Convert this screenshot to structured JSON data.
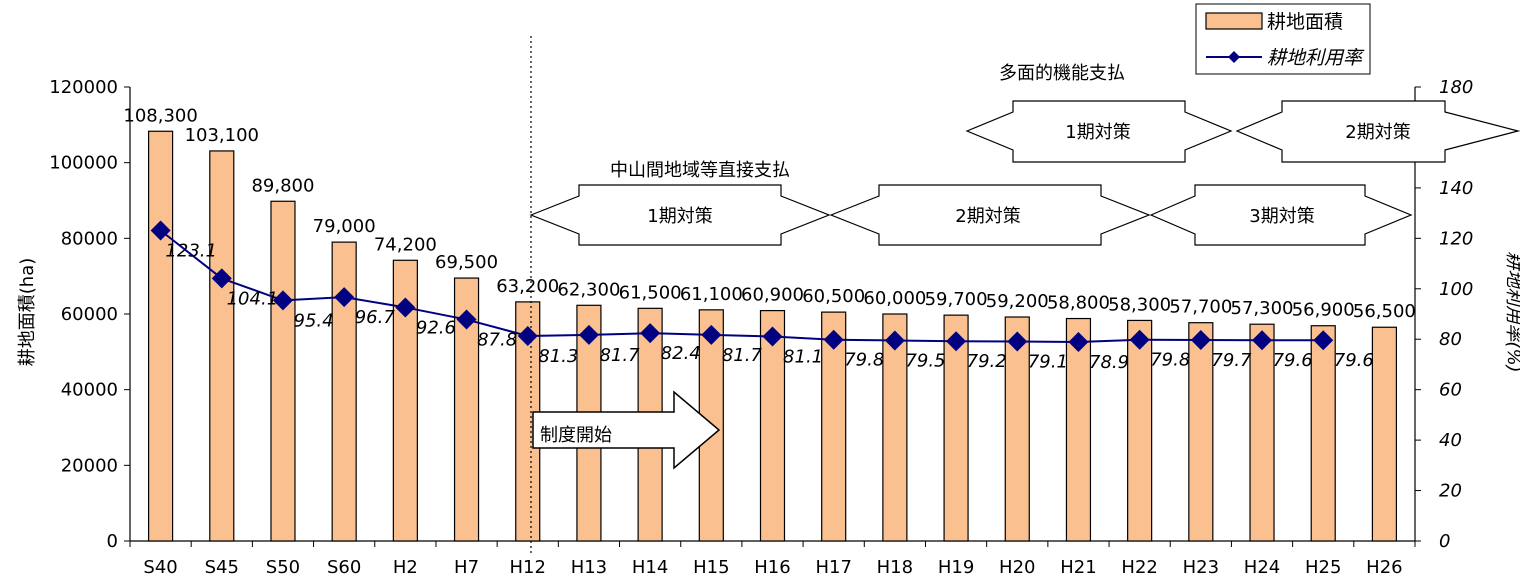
{
  "chart_data": {
    "type": "bar+line",
    "categories": [
      "S40",
      "S45",
      "S50",
      "S60",
      "H2",
      "H7",
      "H12",
      "H13",
      "H14",
      "H15",
      "H16",
      "H17",
      "H18",
      "H19",
      "H20",
      "H21",
      "H22",
      "H23",
      "H24",
      "H25",
      "H26"
    ],
    "series": [
      {
        "name": "耕地面積",
        "type": "bar",
        "axis": "left",
        "color": "#FAC090",
        "values": [
          108300,
          103100,
          89800,
          79000,
          74200,
          69500,
          63200,
          62300,
          61500,
          61100,
          60900,
          60500,
          60000,
          59700,
          59200,
          58800,
          58300,
          57700,
          57300,
          56900,
          56500
        ],
        "labels": [
          "108,300",
          "103,100",
          "89,800",
          "79,000",
          "74,200",
          "69,500",
          "63,200",
          "62,300",
          "61,500",
          "61,100",
          "60,900",
          "60,500",
          "60,000",
          "59,700",
          "59,200",
          "58,800",
          "58,300",
          "57,700",
          "57,300",
          "56,900",
          "56,500"
        ]
      },
      {
        "name": "耕地利用率",
        "type": "line",
        "axis": "right",
        "color": "#000080",
        "marker": "diamond",
        "values": [
          123.1,
          104.1,
          95.4,
          96.7,
          92.6,
          87.8,
          81.3,
          81.7,
          82.4,
          81.7,
          81.1,
          79.8,
          79.5,
          79.2,
          79.1,
          78.9,
          79.8,
          79.7,
          79.6,
          79.6,
          null
        ],
        "labels": [
          "123.1",
          "104.1",
          "95.4",
          "96.7",
          "92.6",
          "87.8",
          "81.3",
          "81.7",
          "82.4",
          "81.7",
          "81.1",
          "79.8",
          "79.5",
          "79.2",
          "79.1",
          "78.9",
          "79.8",
          "79.7",
          "79.6",
          "79.6",
          ""
        ]
      }
    ],
    "ylabel_left": "耕地面積(ha)",
    "ylabel_right": "耕地利用率(%)",
    "ylim_left": [
      0,
      120000
    ],
    "yticks_left": [
      "0",
      "20000",
      "40000",
      "60000",
      "80000",
      "100000",
      "120000"
    ],
    "ylim_right": [
      0,
      180
    ],
    "yticks_right": [
      "0",
      "20",
      "40",
      "60",
      "80",
      "100",
      "120",
      "140",
      "160",
      "180"
    ],
    "grid": false,
    "legend_position": "top-right"
  },
  "annotations": {
    "program_start": "制度開始",
    "chusankan_title": "中山間地域等直接支払",
    "chusankan_periods": [
      "1期対策",
      "2期対策",
      "3期対策"
    ],
    "tamenteki_title": "多面的機能支払",
    "tamenteki_periods": [
      "1期対策",
      "2期対策"
    ]
  }
}
